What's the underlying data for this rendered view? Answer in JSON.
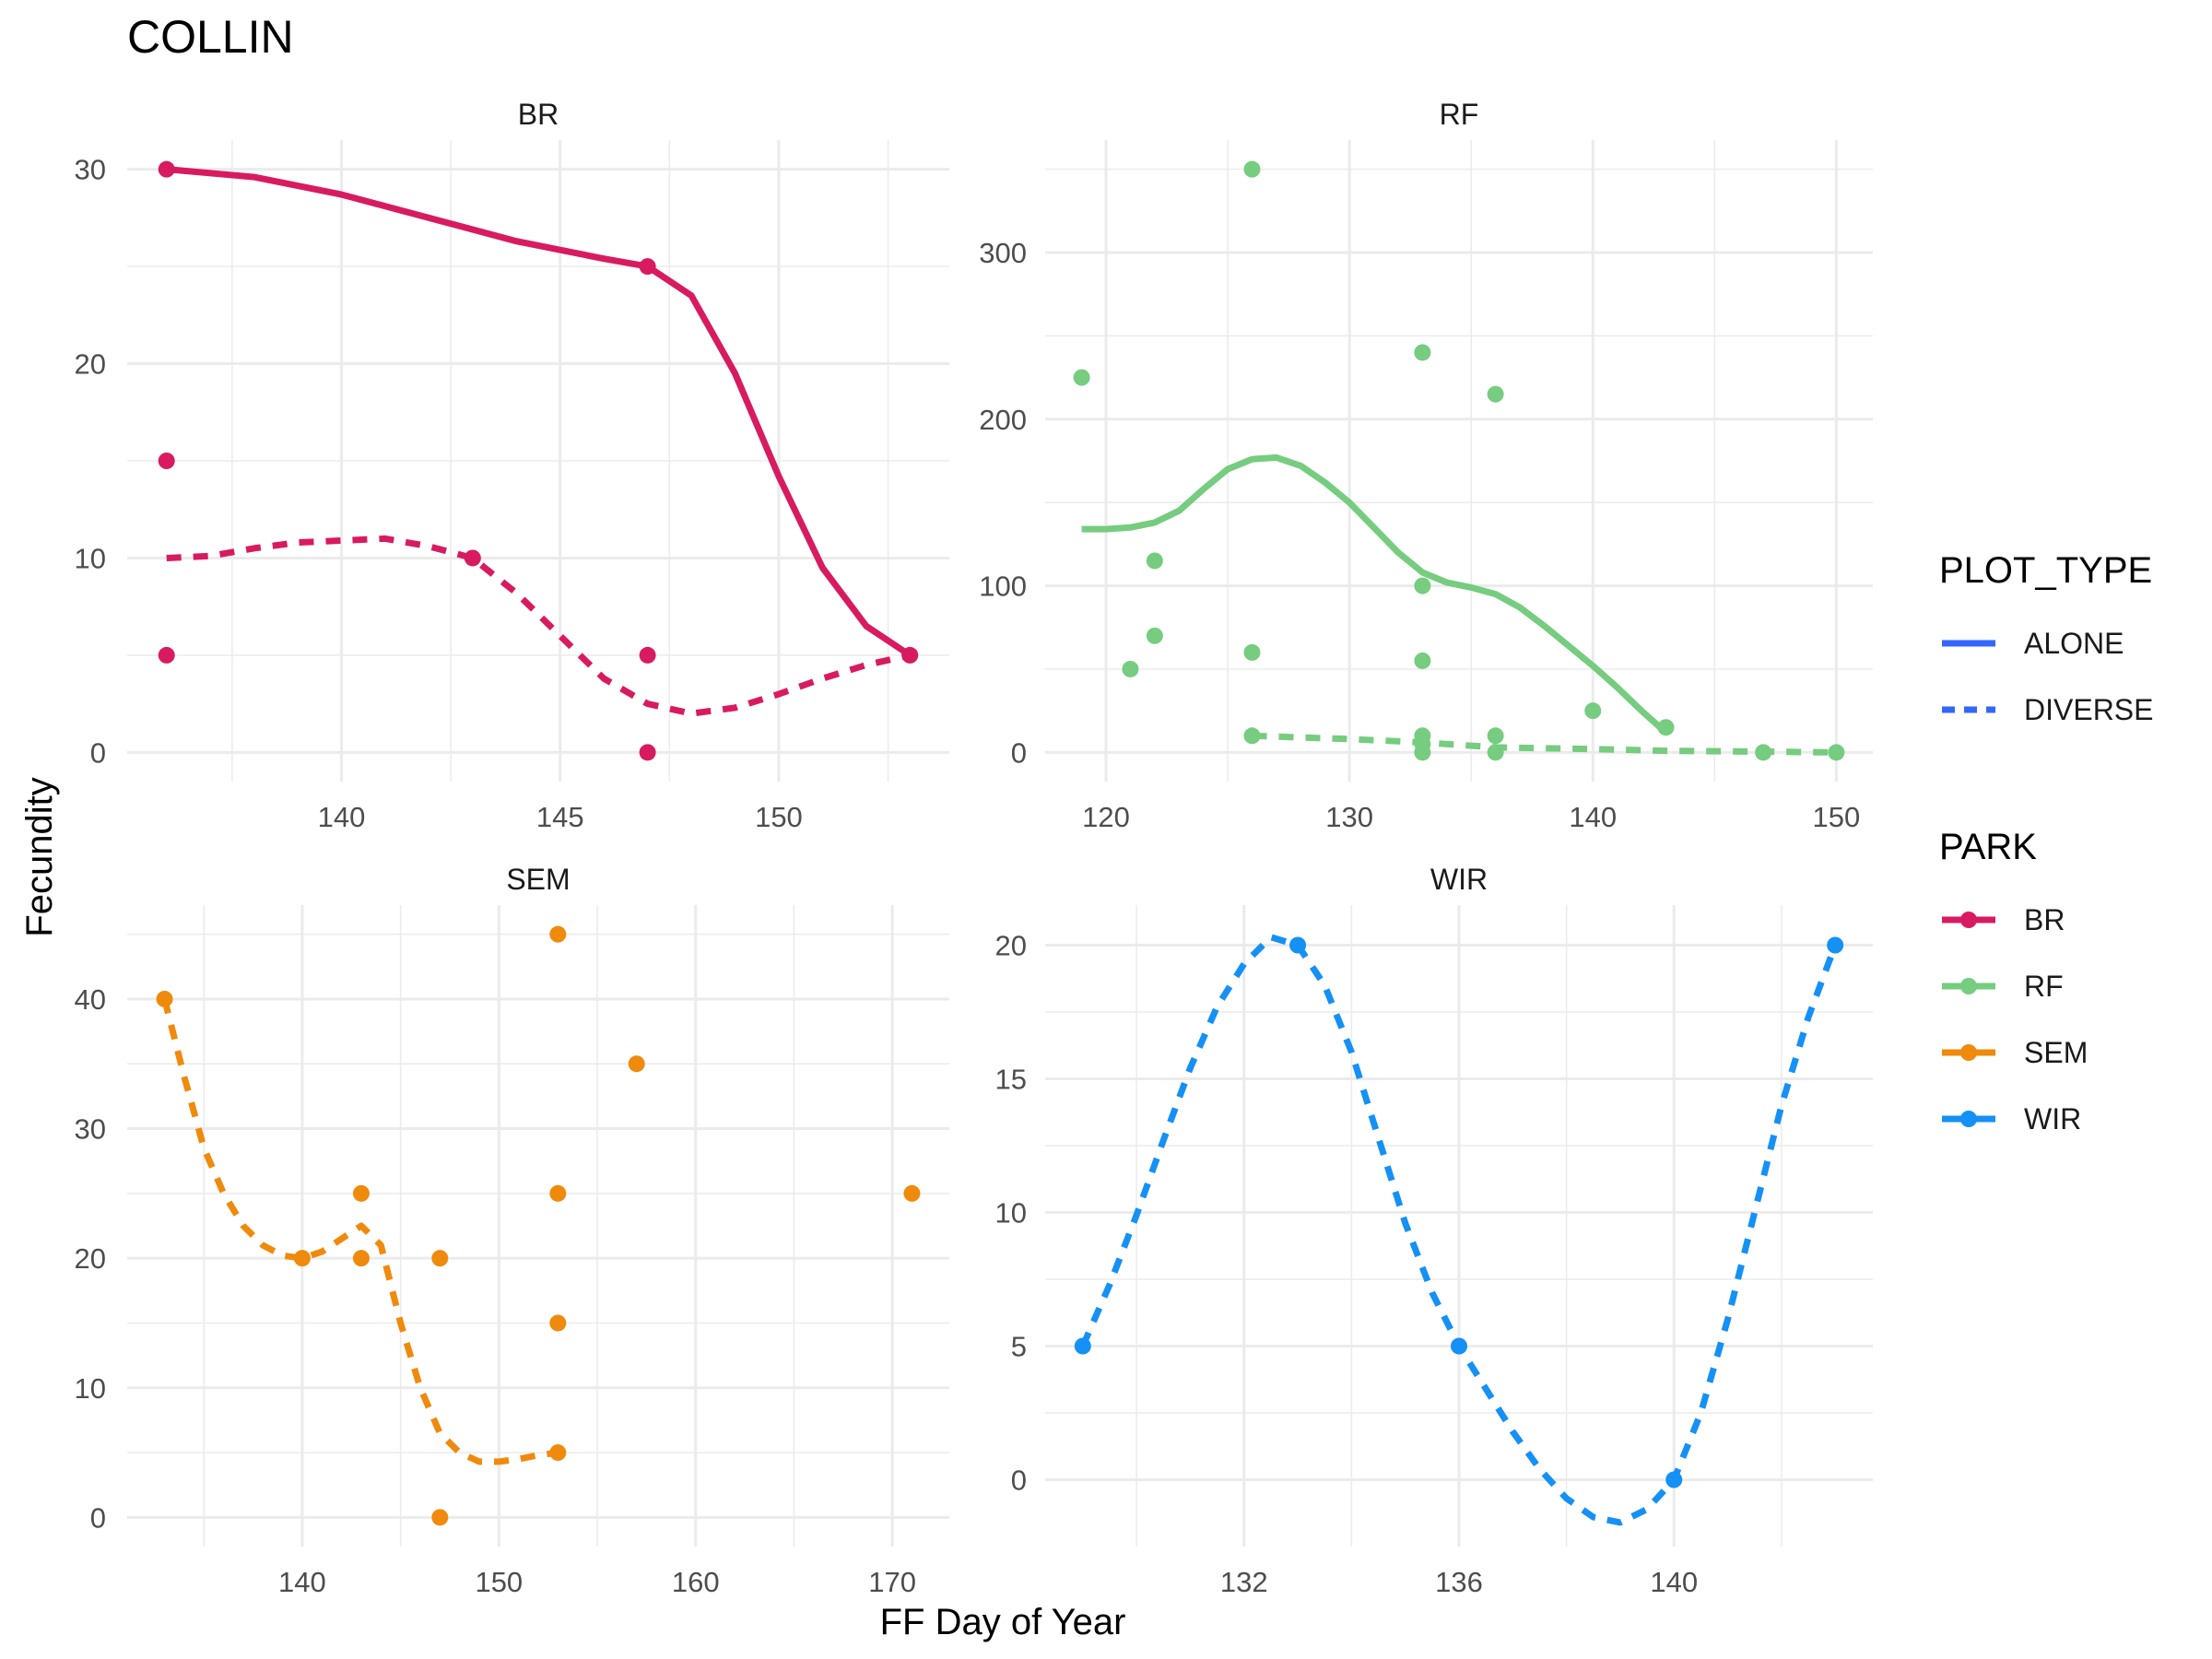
{
  "title": "COLLIN",
  "xlabel": "FF Day of Year",
  "ylabel": "Fecundity",
  "colors": {
    "BR": "#d81b60",
    "RF": "#76cc7f",
    "SEM": "#ef8a0c",
    "WIR": "#1590f5",
    "legend_line": "#3366ff",
    "grid": "#ebebeb",
    "axis_text": "#4d4d4d"
  },
  "legend": {
    "plot_type": {
      "title": "PLOT_TYPE",
      "items": [
        {
          "label": "ALONE",
          "style": "solid"
        },
        {
          "label": "DIVERSE",
          "style": "dashed"
        }
      ]
    },
    "park": {
      "title": "PARK",
      "items": [
        {
          "label": "BR",
          "color_key": "BR"
        },
        {
          "label": "RF",
          "color_key": "RF"
        },
        {
          "label": "SEM",
          "color_key": "SEM"
        },
        {
          "label": "WIR",
          "color_key": "WIR"
        }
      ]
    }
  },
  "chart_data": [
    {
      "type": "scatter",
      "facet": "BR",
      "color_key": "BR",
      "xlim": [
        135.1,
        153.9
      ],
      "ylim": [
        -1.5,
        31.5
      ],
      "xticks": [
        140,
        145,
        150
      ],
      "xminor": [
        137.5,
        142.5,
        147.5,
        152.5
      ],
      "yticks": [
        0,
        10,
        20,
        30
      ],
      "yminor": [
        5,
        15,
        25
      ],
      "points": [
        [
          136,
          30
        ],
        [
          136,
          15
        ],
        [
          136,
          5
        ],
        [
          143,
          10
        ],
        [
          147,
          25
        ],
        [
          147,
          5
        ],
        [
          147,
          0
        ],
        [
          153,
          5
        ]
      ],
      "lines": [
        {
          "style": "solid",
          "points": [
            [
              136,
              30
            ],
            [
              138,
              29.6
            ],
            [
              140,
              28.7
            ],
            [
              142,
              27.5
            ],
            [
              144,
              26.3
            ],
            [
              146,
              25.4
            ],
            [
              147,
              25
            ],
            [
              148,
              23.5
            ],
            [
              149,
              19.5
            ],
            [
              150,
              14.2
            ],
            [
              151,
              9.5
            ],
            [
              152,
              6.5
            ],
            [
              153,
              5
            ]
          ]
        },
        {
          "style": "dashed",
          "points": [
            [
              136,
              10
            ],
            [
              137,
              10.1
            ],
            [
              138,
              10.5
            ],
            [
              139,
              10.8
            ],
            [
              140,
              10.9
            ],
            [
              141,
              11
            ],
            [
              142,
              10.6
            ],
            [
              143,
              10
            ],
            [
              144,
              8.2
            ],
            [
              145,
              6
            ],
            [
              146,
              3.8
            ],
            [
              147,
              2.5
            ],
            [
              148,
              2
            ],
            [
              149,
              2.3
            ],
            [
              150,
              3
            ],
            [
              151,
              3.8
            ],
            [
              152,
              4.5
            ],
            [
              153,
              5
            ]
          ]
        }
      ]
    },
    {
      "type": "scatter",
      "facet": "RF",
      "color_key": "RF",
      "xlim": [
        117.5,
        151.5
      ],
      "ylim": [
        -17.5,
        367.5
      ],
      "xticks": [
        120,
        130,
        140,
        150
      ],
      "xminor": [
        125,
        135,
        145
      ],
      "yticks": [
        0,
        100,
        200,
        300
      ],
      "yminor": [
        50,
        150,
        250,
        350
      ],
      "points": [
        [
          119,
          225
        ],
        [
          121,
          50
        ],
        [
          122,
          115
        ],
        [
          122,
          70
        ],
        [
          126,
          350
        ],
        [
          126,
          60
        ],
        [
          126,
          10
        ],
        [
          133,
          240
        ],
        [
          133,
          100
        ],
        [
          133,
          55
        ],
        [
          133,
          10
        ],
        [
          133,
          5
        ],
        [
          133,
          0
        ],
        [
          136,
          215
        ],
        [
          136,
          10
        ],
        [
          136,
          0
        ],
        [
          140,
          25
        ],
        [
          143,
          15
        ],
        [
          147,
          0
        ],
        [
          150,
          0
        ]
      ],
      "lines": [
        {
          "style": "solid",
          "points": [
            [
              119,
              134
            ],
            [
              120,
              134
            ],
            [
              121,
              135
            ],
            [
              122,
              138
            ],
            [
              123,
              145
            ],
            [
              124,
              158
            ],
            [
              125,
              170
            ],
            [
              126,
              176
            ],
            [
              127,
              177
            ],
            [
              128,
              172
            ],
            [
              129,
              162
            ],
            [
              130,
              150
            ],
            [
              131,
              135
            ],
            [
              132,
              120
            ],
            [
              133,
              108
            ],
            [
              134,
              102
            ],
            [
              135,
              99
            ],
            [
              136,
              95
            ],
            [
              137,
              87
            ],
            [
              138,
              76
            ],
            [
              139,
              64
            ],
            [
              140,
              52
            ],
            [
              141,
              39
            ],
            [
              142,
              25
            ],
            [
              143,
              12
            ]
          ]
        },
        {
          "style": "dashed",
          "points": [
            [
              126,
              10
            ],
            [
              128,
              9
            ],
            [
              130,
              8
            ],
            [
              133,
              6
            ],
            [
              136,
              3
            ],
            [
              140,
              2
            ],
            [
              143,
              1
            ],
            [
              147,
              0.5
            ],
            [
              150,
              0
            ]
          ]
        }
      ]
    },
    {
      "type": "scatter",
      "facet": "SEM",
      "color_key": "SEM",
      "xlim": [
        131.1,
        172.9
      ],
      "ylim": [
        -2.25,
        47.25
      ],
      "xticks": [
        140,
        150,
        160,
        170
      ],
      "xminor": [
        135,
        145,
        155,
        165
      ],
      "yticks": [
        0,
        10,
        20,
        30,
        40
      ],
      "yminor": [
        5,
        15,
        25,
        35,
        45
      ],
      "points": [
        [
          133,
          40
        ],
        [
          140,
          20
        ],
        [
          143,
          25
        ],
        [
          143,
          20
        ],
        [
          147,
          20
        ],
        [
          147,
          0
        ],
        [
          153,
          45
        ],
        [
          153,
          25
        ],
        [
          153,
          15
        ],
        [
          153,
          5
        ],
        [
          157,
          35
        ],
        [
          171,
          25
        ]
      ],
      "lines": [
        {
          "style": "dashed",
          "points": [
            [
              133,
              40
            ],
            [
              134,
              34
            ],
            [
              135,
              28.5
            ],
            [
              136,
              25
            ],
            [
              137,
              22.5
            ],
            [
              138,
              21
            ],
            [
              139,
              20.2
            ],
            [
              140,
              20
            ],
            [
              141,
              20.5
            ],
            [
              142,
              21.5
            ],
            [
              143,
              22.5
            ],
            [
              144,
              21
            ],
            [
              145,
              15
            ],
            [
              146,
              10
            ],
            [
              147,
              6.5
            ],
            [
              148,
              5
            ],
            [
              149,
              4.3
            ],
            [
              150,
              4.3
            ],
            [
              151,
              4.5
            ],
            [
              152,
              4.8
            ],
            [
              153,
              5
            ]
          ]
        }
      ]
    },
    {
      "type": "scatter",
      "facet": "WIR",
      "color_key": "WIR",
      "xlim": [
        128.3,
        143.7
      ],
      "ylim": [
        -2.5,
        21.5
      ],
      "xticks": [
        132,
        136,
        140
      ],
      "xminor": [
        130,
        134,
        138,
        142
      ],
      "yticks": [
        0,
        5,
        10,
        15,
        20
      ],
      "yminor": [
        2.5,
        7.5,
        12.5,
        17.5
      ],
      "points": [
        [
          129,
          5
        ],
        [
          133,
          20
        ],
        [
          136,
          5
        ],
        [
          140,
          0
        ],
        [
          143,
          20
        ]
      ],
      "lines": [
        {
          "style": "dashed",
          "points": [
            [
              129,
              5
            ],
            [
              129.5,
              7.3
            ],
            [
              130,
              9.9
            ],
            [
              130.5,
              12.7
            ],
            [
              131,
              15.4
            ],
            [
              131.5,
              17.7
            ],
            [
              132,
              19.3
            ],
            [
              132.5,
              20.3
            ],
            [
              133,
              20
            ],
            [
              133.5,
              18.5
            ],
            [
              134,
              16
            ],
            [
              134.5,
              12.8
            ],
            [
              135,
              9.6
            ],
            [
              135.5,
              7
            ],
            [
              136,
              5
            ],
            [
              136.5,
              3.4
            ],
            [
              137,
              1.8
            ],
            [
              137.5,
              0.4
            ],
            [
              138,
              -0.7
            ],
            [
              138.5,
              -1.4
            ],
            [
              139,
              -1.6
            ],
            [
              139.5,
              -1.1
            ],
            [
              140,
              0
            ],
            [
              140.5,
              2.5
            ],
            [
              141,
              6
            ],
            [
              141.5,
              10
            ],
            [
              142,
              14
            ],
            [
              142.5,
              17.3
            ],
            [
              143,
              20
            ]
          ]
        }
      ]
    }
  ]
}
